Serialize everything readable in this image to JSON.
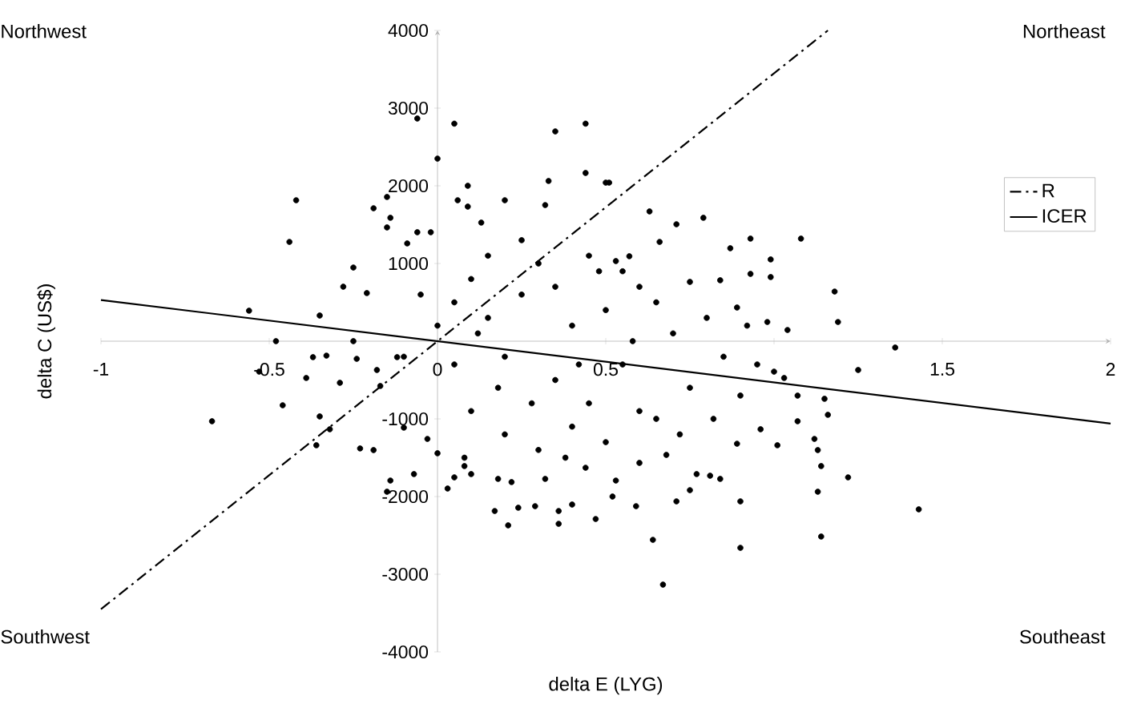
{
  "chart_data": {
    "type": "scatter",
    "xlabel": "delta E (LYG)",
    "ylabel": "delta C (US$)",
    "xlim": [
      -1,
      2
    ],
    "ylim": [
      -4000,
      4000
    ],
    "xticks": [
      -1,
      -0.5,
      0,
      0.5,
      {
        "value": 1,
        "label": null
      },
      1.5,
      2
    ],
    "yticks": [
      -4000,
      -3000,
      -2000,
      -1000,
      {
        "value": 0,
        "label": null
      },
      1000,
      2000,
      3000,
      4000
    ],
    "legend": "right",
    "marker": "circle",
    "annotations": [
      "Northwest",
      "Northeast",
      "Southwest",
      "Southeast"
    ],
    "series": [
      {
        "type": "scatter",
        "color": "#000000",
        "x": [
          -0.06,
          0.05,
          0.0,
          0.35,
          0.44,
          0.44,
          -0.42,
          -0.44,
          -0.56,
          -0.48,
          -0.35,
          -0.25,
          -0.19,
          -0.15,
          -0.14,
          -0.15,
          -0.06,
          -0.02,
          -0.25,
          -0.28,
          -0.21,
          -0.09,
          0.06,
          0.09,
          0.2,
          0.33,
          0.32,
          0.5,
          0.09,
          0.13,
          0.51,
          0.63,
          0.71,
          0.79,
          0.66,
          0.93,
          1.08,
          0.87,
          0.99,
          0.99,
          1.18,
          1.19,
          1.04,
          0.98,
          1.36,
          0.93,
          0.89,
          0.84,
          0.75,
          0.57,
          0.53,
          -0.67,
          -0.53,
          -0.46,
          -0.39,
          -0.37,
          -0.33,
          -0.29,
          -0.35,
          -0.32,
          -0.36,
          -0.23,
          -0.19,
          -0.14,
          -0.07,
          -0.15,
          -0.24,
          -0.18,
          -0.17,
          -0.12,
          -0.1,
          -0.03,
          0.0,
          0.03,
          0.05,
          0.08,
          0.1,
          0.17,
          0.21,
          0.22,
          0.24,
          0.29,
          0.32,
          0.36,
          0.36,
          0.4,
          0.47,
          0.44,
          0.18,
          0.64,
          0.67,
          0.9,
          1.14,
          1.43,
          1.22,
          1.13,
          1.14,
          1.13,
          1.12,
          1.16,
          1.15,
          1.25,
          1.07,
          1.01,
          0.9,
          0.84,
          0.81,
          0.71,
          0.59,
          0.52,
          0.75,
          1.07,
          1.03,
          1.0,
          0.96,
          0.89,
          0.77,
          0.68,
          0.6,
          0.53,
          0.05,
          0.1,
          0.15,
          0.2,
          0.25,
          0.3,
          0.35,
          0.4,
          0.45,
          0.5,
          0.55,
          0.6,
          0.65,
          0.7,
          0.75,
          0.8,
          0.85,
          0.9,
          0.1,
          0.2,
          0.3,
          0.4,
          0.5,
          0.6,
          0.15,
          0.25,
          0.45,
          0.55,
          0.35,
          0.65,
          0.05,
          0.0,
          -0.05,
          -0.1,
          0.12,
          0.28,
          0.42,
          0.58,
          0.72,
          0.82,
          0.95,
          0.92,
          0.48,
          0.38,
          0.18,
          0.08
        ],
        "values": [
          2866,
          2800,
          2350,
          2700,
          2800,
          2165,
          1814,
          1278,
          392,
          0,
          330,
          0,
          1711,
          1856,
          1588,
          1464,
          1402,
          1402,
          948,
          701,
          619,
          1258,
          1814,
          2000,
          1814,
          2062,
          1752,
          2041,
          1732,
          1526,
          2041,
          1670,
          1505,
          1588,
          1278,
          1320,
          1320,
          1196,
          1052,
          825,
          639,
          247,
          144,
          247,
          -82,
          866,
          433,
          784,
          763,
          1093,
          1031,
          -1031,
          -392,
          -825,
          -474,
          -206,
          -186,
          -536,
          -969,
          -1134,
          -1340,
          -1381,
          -1402,
          -1794,
          -1711,
          -1938,
          -227,
          -371,
          -577,
          -206,
          -1113,
          -1258,
          -1443,
          -1897,
          -1753,
          -1608,
          -1711,
          -2186,
          -2371,
          -1814,
          -2144,
          -2124,
          -1773,
          -2351,
          -2186,
          -2103,
          -2289,
          -1629,
          -1773,
          -2557,
          -3134,
          -2660,
          -2515,
          -2165,
          -1753,
          -1938,
          -1608,
          -1402,
          -1258,
          -948,
          -742,
          -371,
          -1031,
          -1340,
          -2062,
          -1773,
          -1732,
          -2062,
          -2124,
          -2000,
          -1918,
          -701,
          -474,
          -392,
          -1134,
          -1320,
          -1711,
          -1464,
          -1567,
          -1794,
          500,
          800,
          300,
          -200,
          600,
          1000,
          -500,
          200,
          -800,
          400,
          -300,
          700,
          -1000,
          100,
          -600,
          300,
          -200,
          -700,
          -900,
          -1200,
          -1400,
          -1100,
          -1300,
          -900,
          1100,
          1300,
          1100,
          900,
          700,
          500,
          -300,
          200,
          600,
          -200,
          100,
          -800,
          -300,
          0,
          -1200,
          -1000,
          -300,
          200,
          900,
          -1500,
          -600,
          -1500
        ]
      },
      {
        "type": "line",
        "name": "R",
        "color": "#000000",
        "marker": "none",
        "line_style": "dashdot",
        "x": [
          -1,
          1.16
        ],
        "values": [
          -3450,
          4000
        ]
      },
      {
        "type": "line",
        "name": "ICER",
        "color": "#000000",
        "marker": "none",
        "line_style": "solid",
        "x": [
          -1,
          2
        ],
        "values": [
          530,
          -1060
        ]
      }
    ]
  }
}
